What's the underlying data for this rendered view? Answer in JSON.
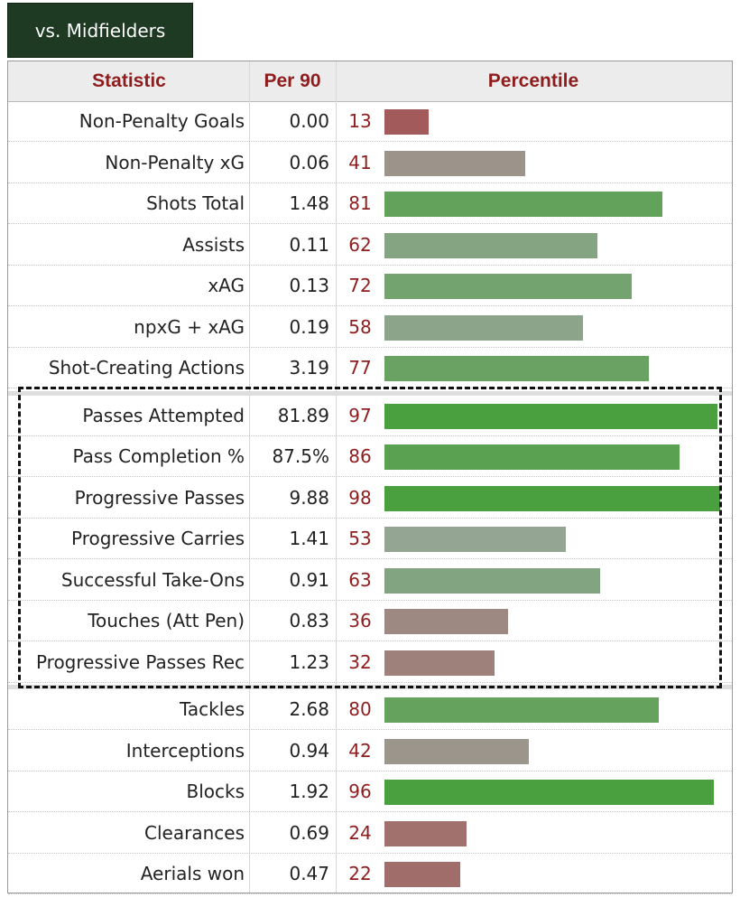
{
  "tab": {
    "label": "vs. Midfielders"
  },
  "headers": {
    "statistic": "Statistic",
    "per90": "Per 90",
    "percentile": "Percentile"
  },
  "groups": [
    {
      "rows": [
        {
          "stat": "Non-Penalty Goals",
          "per90": "0.00",
          "percentile": "13"
        },
        {
          "stat": "Non-Penalty xG",
          "per90": "0.06",
          "percentile": "41"
        },
        {
          "stat": "Shots Total",
          "per90": "1.48",
          "percentile": "81"
        },
        {
          "stat": "Assists",
          "per90": "0.11",
          "percentile": "62"
        },
        {
          "stat": "xAG",
          "per90": "0.13",
          "percentile": "72"
        },
        {
          "stat": "npxG + xAG",
          "per90": "0.19",
          "percentile": "58"
        },
        {
          "stat": "Shot-Creating Actions",
          "per90": "3.19",
          "percentile": "77"
        }
      ]
    },
    {
      "highlighted": true,
      "rows": [
        {
          "stat": "Passes Attempted",
          "per90": "81.89",
          "percentile": "97"
        },
        {
          "stat": "Pass Completion %",
          "per90": "87.5%",
          "percentile": "86"
        },
        {
          "stat": "Progressive Passes",
          "per90": "9.88",
          "percentile": "98"
        },
        {
          "stat": "Progressive Carries",
          "per90": "1.41",
          "percentile": "53"
        },
        {
          "stat": "Successful Take-Ons",
          "per90": "0.91",
          "percentile": "63"
        },
        {
          "stat": "Touches (Att Pen)",
          "per90": "0.83",
          "percentile": "36"
        },
        {
          "stat": "Progressive Passes Rec",
          "per90": "1.23",
          "percentile": "32"
        }
      ]
    },
    {
      "rows": [
        {
          "stat": "Tackles",
          "per90": "2.68",
          "percentile": "80"
        },
        {
          "stat": "Interceptions",
          "per90": "0.94",
          "percentile": "42"
        },
        {
          "stat": "Blocks",
          "per90": "1.92",
          "percentile": "96"
        },
        {
          "stat": "Clearances",
          "per90": "0.69",
          "percentile": "24"
        },
        {
          "stat": "Aerials won",
          "per90": "0.47",
          "percentile": "22"
        }
      ]
    }
  ],
  "colors": {
    "header_text": "#8f1d1d",
    "tab_bg": "#1e3a23",
    "high": "#4aa03f",
    "mid": "#9aa59a",
    "low": "#a35555"
  }
}
